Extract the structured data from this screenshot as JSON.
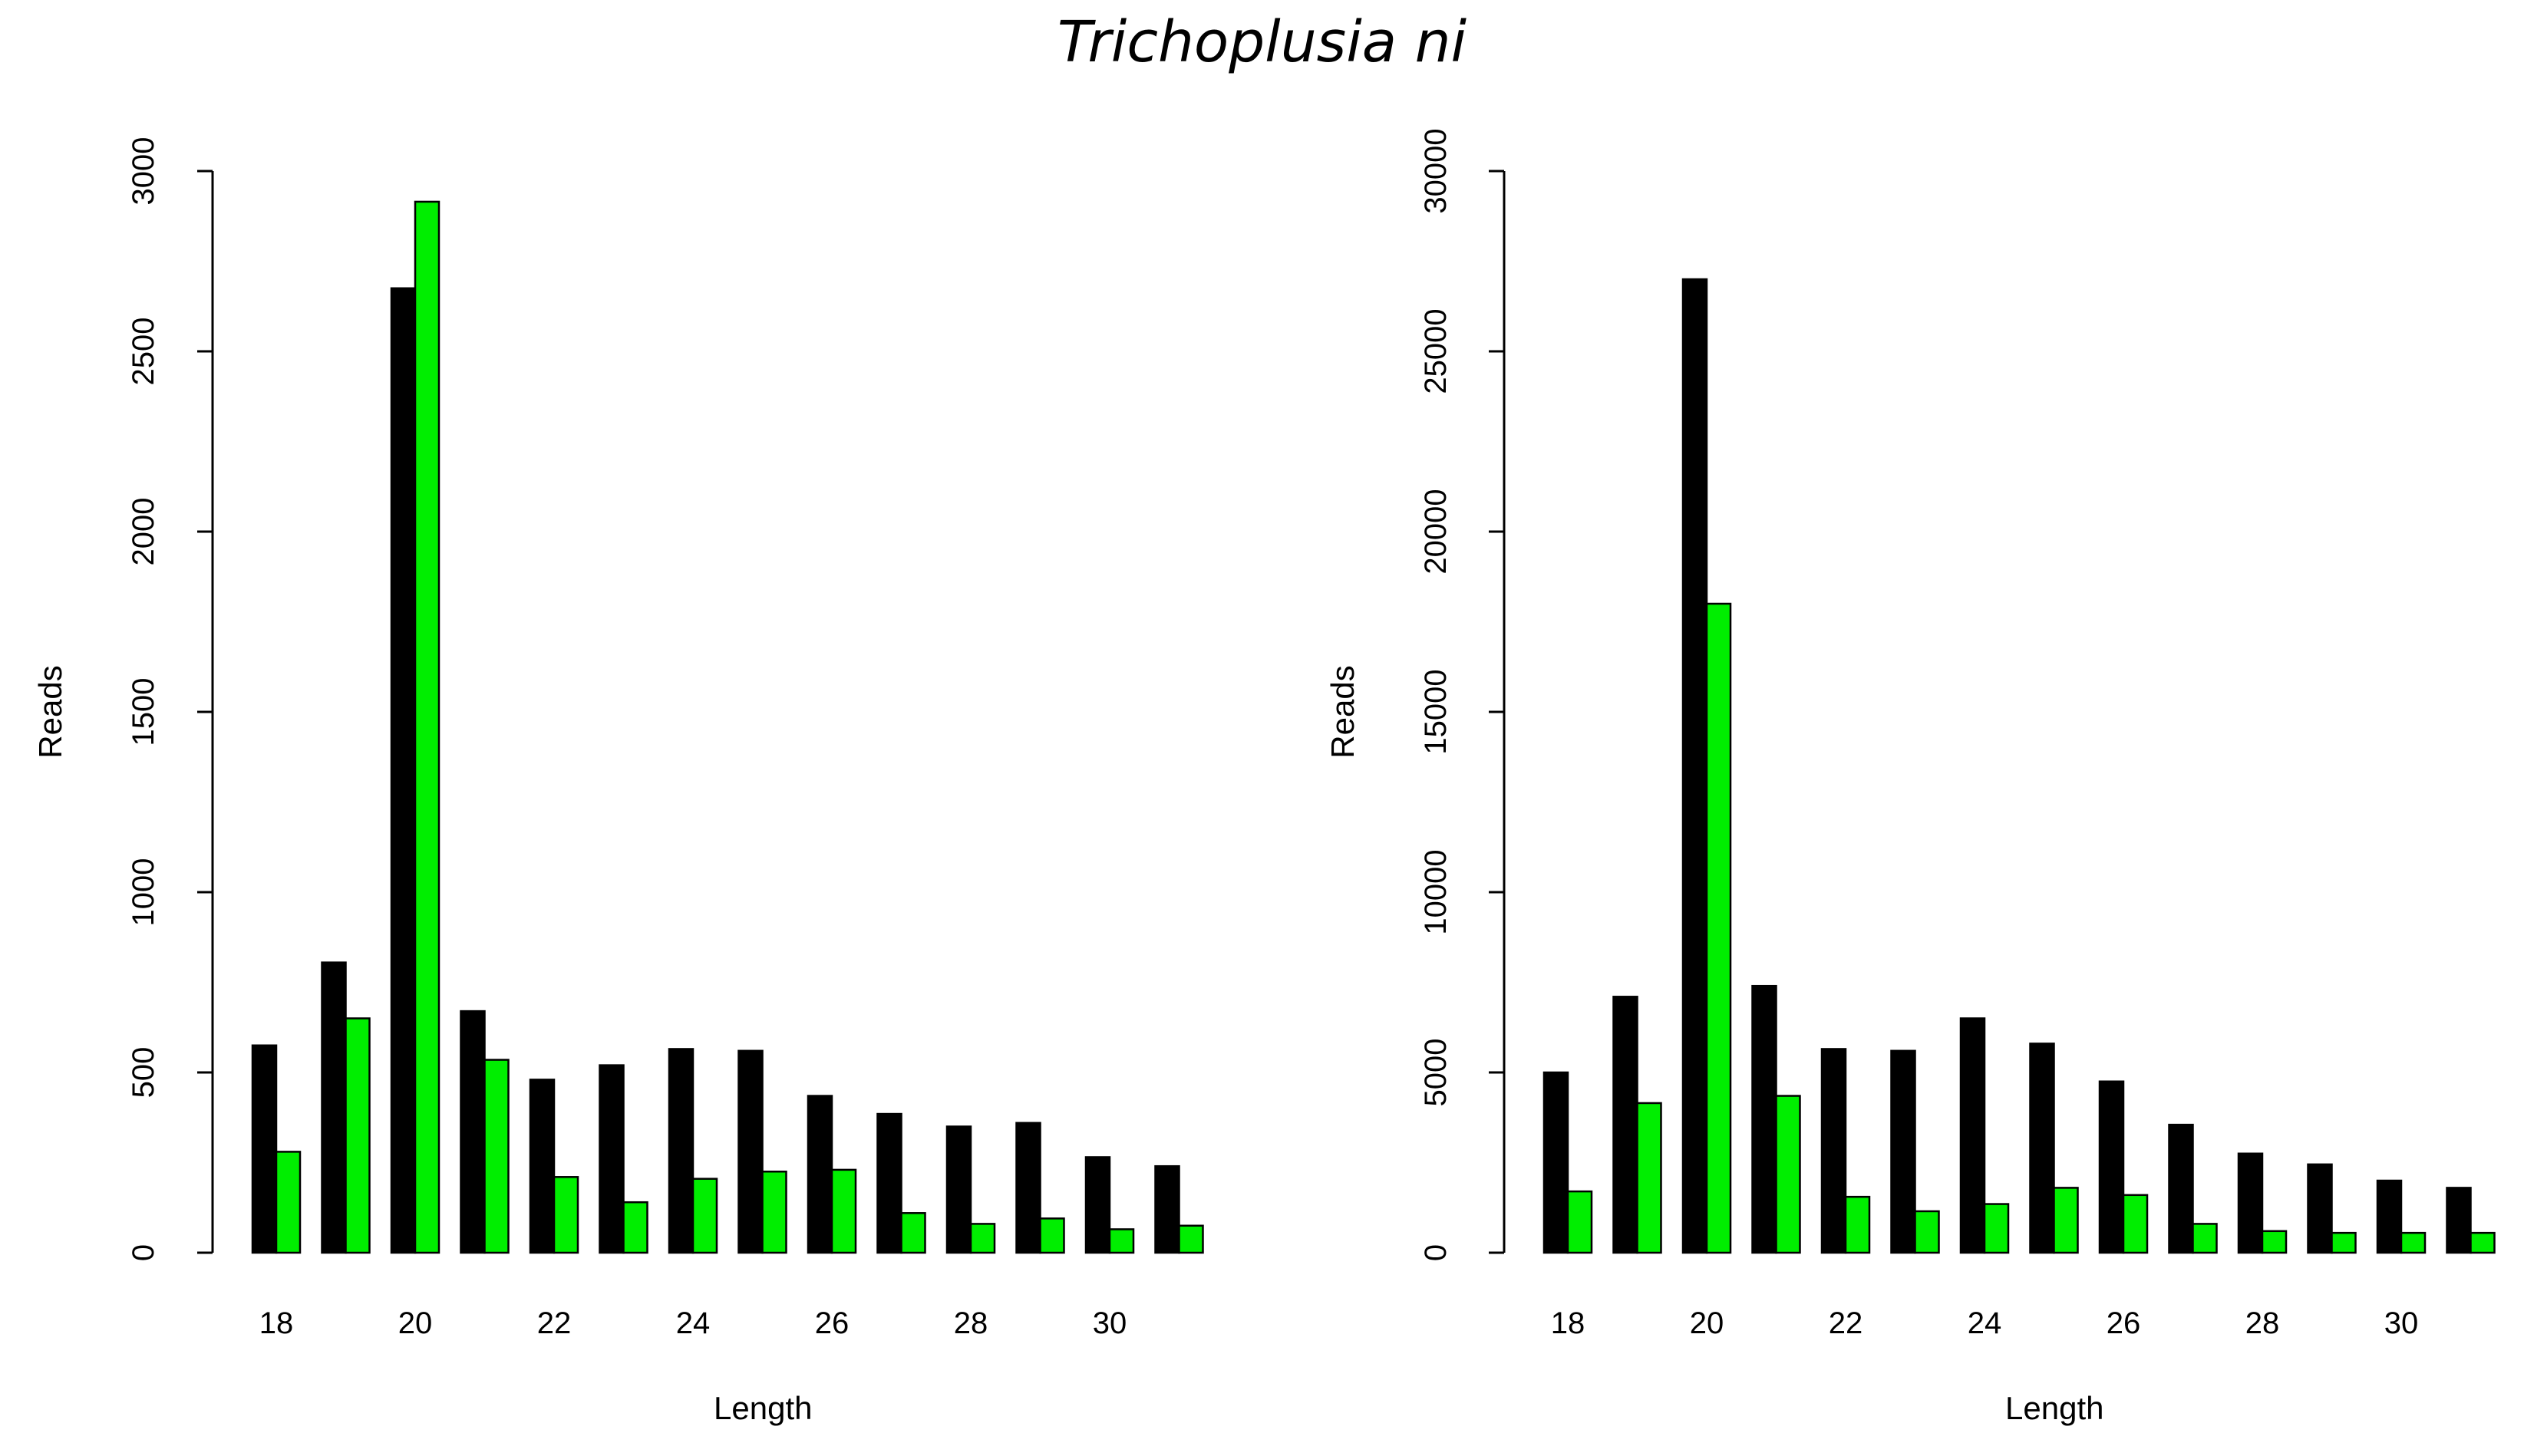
{
  "figure_title": "Trichoplusia ni",
  "colors": {
    "series_a": "#000000",
    "series_b": "#00ee00"
  },
  "chart_data": [
    {
      "type": "bar",
      "title": "",
      "xlabel": "Length",
      "ylabel": "Reads",
      "categories": [
        "18",
        "19",
        "20",
        "21",
        "22",
        "23",
        "24",
        "25",
        "26",
        "27",
        "28",
        "29",
        "30",
        "31"
      ],
      "x_tick_labels": [
        "18",
        "20",
        "22",
        "24",
        "26",
        "28",
        "30"
      ],
      "y_ticks": [
        "0",
        "500",
        "1000",
        "1500",
        "2000",
        "2500",
        "3000"
      ],
      "ylim": [
        0,
        3000
      ],
      "series": [
        {
          "name": "black",
          "color": "#000000",
          "values": [
            575,
            805,
            2675,
            670,
            480,
            520,
            565,
            560,
            435,
            385,
            350,
            360,
            265,
            240
          ]
        },
        {
          "name": "green",
          "color": "#00ee00",
          "values": [
            280,
            650,
            2915,
            535,
            210,
            140,
            205,
            225,
            230,
            110,
            80,
            95,
            65,
            75
          ]
        }
      ]
    },
    {
      "type": "bar",
      "title": "",
      "xlabel": "Length",
      "ylabel": "Reads",
      "categories": [
        "18",
        "19",
        "20",
        "21",
        "22",
        "23",
        "24",
        "25",
        "26",
        "27",
        "28",
        "29",
        "30",
        "31"
      ],
      "x_tick_labels": [
        "18",
        "20",
        "22",
        "24",
        "26",
        "28",
        "30"
      ],
      "y_ticks": [
        "0",
        "5000",
        "10000",
        "15000",
        "20000",
        "25000",
        "30000"
      ],
      "ylim": [
        0,
        30000
      ],
      "series": [
        {
          "name": "black",
          "color": "#000000",
          "values": [
            5000,
            7100,
            27000,
            7400,
            5650,
            5600,
            6500,
            5800,
            4750,
            3550,
            2750,
            2450,
            2000,
            1800
          ]
        },
        {
          "name": "green",
          "color": "#00ee00",
          "values": [
            1700,
            4150,
            18000,
            4350,
            1550,
            1150,
            1350,
            1800,
            1600,
            800,
            600,
            550,
            550,
            550
          ]
        }
      ]
    }
  ]
}
